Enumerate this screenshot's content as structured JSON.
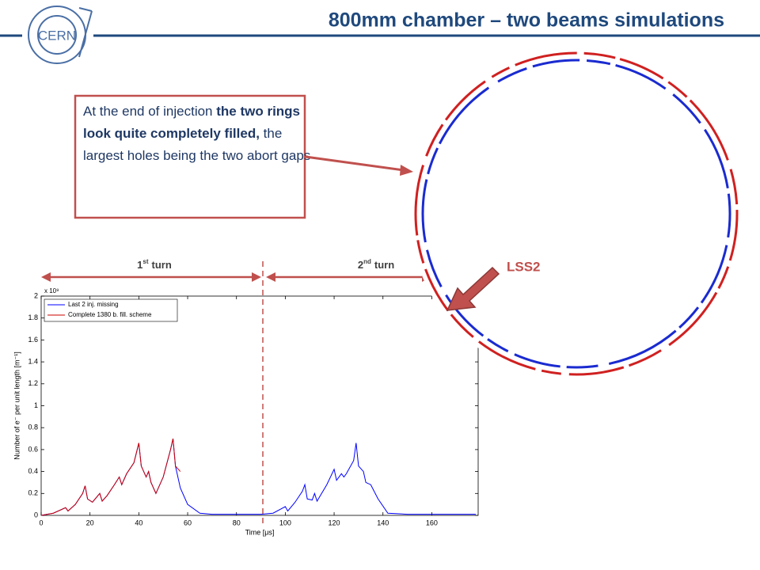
{
  "header": {
    "logo": "CERN",
    "title": "800mm chamber – two beams simulations"
  },
  "callout": {
    "segments": [
      {
        "text": "At the end of injection ",
        "bold": false
      },
      {
        "text": "the two rings look quite completely filled,",
        "bold": true
      },
      {
        "text": " the largest holes being the two abort gaps",
        "bold": false
      }
    ]
  },
  "turns": [
    {
      "number": "1",
      "suffix": "st",
      "word": "turn"
    },
    {
      "number": "2",
      "suffix": "nd",
      "word": "turn"
    }
  ],
  "marker": "LSS2",
  "chart_data": {
    "type": "line",
    "xlabel": "Time [μs]",
    "ylabel": "Number of e⁻ per unit length [m⁻¹]",
    "multiplier": "x 10⁹",
    "x": [
      0,
      5,
      10,
      11,
      14,
      17,
      18,
      19,
      21,
      24,
      25,
      27,
      30,
      32,
      33,
      35,
      38,
      40,
      41,
      43,
      44,
      45,
      47,
      50,
      53,
      54,
      55,
      57,
      60,
      65,
      70,
      80,
      90,
      95,
      100,
      101,
      104,
      107,
      108,
      109,
      111,
      112,
      113,
      117,
      120,
      121,
      123,
      124,
      125,
      128,
      129,
      130,
      132,
      133,
      135,
      138,
      142,
      150,
      178
    ],
    "series": [
      {
        "name": "Last 2 inj. missing",
        "color": "#0000ff",
        "values": [
          0,
          0.02,
          0.07,
          0.04,
          0.1,
          0.2,
          0.27,
          0.15,
          0.12,
          0.2,
          0.13,
          0.18,
          0.28,
          0.35,
          0.28,
          0.38,
          0.48,
          0.66,
          0.45,
          0.35,
          0.4,
          0.3,
          0.2,
          0.35,
          0.6,
          0.7,
          0.45,
          0.25,
          0.1,
          0.02,
          0.01,
          0.01,
          0.01,
          0.02,
          0.08,
          0.04,
          0.12,
          0.22,
          0.28,
          0.15,
          0.14,
          0.2,
          0.13,
          0.28,
          0.42,
          0.32,
          0.38,
          0.35,
          0.38,
          0.5,
          0.66,
          0.45,
          0.4,
          0.3,
          0.28,
          0.15,
          0.02,
          0.01,
          0.01
        ]
      },
      {
        "name": "Complete 1380 b. fill. scheme",
        "color": "#cc0000",
        "values": [
          0,
          0.02,
          0.07,
          0.04,
          0.1,
          0.2,
          0.27,
          0.15,
          0.12,
          0.2,
          0.13,
          0.18,
          0.28,
          0.35,
          0.28,
          0.38,
          0.48,
          0.66,
          0.45,
          0.35,
          0.4,
          0.3,
          0.2,
          0.35,
          0.6,
          0.7,
          0.45,
          0.4,
          null,
          null,
          null,
          null,
          null,
          null,
          null,
          null,
          null,
          null,
          null,
          null,
          null,
          null,
          null,
          null,
          null,
          null,
          null,
          null,
          null,
          null,
          null,
          null,
          null,
          null,
          null,
          null,
          null,
          null,
          null
        ]
      }
    ],
    "xlim": [
      0,
      179
    ],
    "xticks": [
      0,
      20,
      40,
      60,
      80,
      100,
      120,
      140,
      160
    ],
    "ylim": [
      0,
      2
    ],
    "yticks": [
      0,
      0.2,
      0.4,
      0.6,
      0.8,
      1,
      1.2,
      1.4,
      1.6,
      1.8,
      2
    ]
  }
}
